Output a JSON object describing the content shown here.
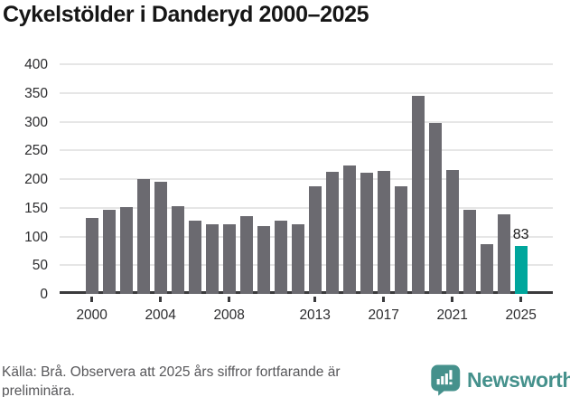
{
  "chart_data": {
    "type": "bar",
    "title": "Cykelstölder i Danderyd 2000–2025",
    "xlabel": "",
    "ylabel": "",
    "categories": [
      2000,
      2001,
      2002,
      2003,
      2004,
      2005,
      2006,
      2007,
      2008,
      2009,
      2010,
      2011,
      2012,
      2013,
      2014,
      2015,
      2016,
      2017,
      2018,
      2019,
      2020,
      2021,
      2022,
      2023,
      2024,
      2025
    ],
    "values": [
      132,
      146,
      151,
      200,
      196,
      153,
      127,
      121,
      121,
      136,
      118,
      128,
      121,
      187,
      212,
      223,
      211,
      214,
      187,
      345,
      297,
      215,
      146,
      87,
      139,
      83
    ],
    "ylim": [
      0,
      400
    ],
    "y_ticks": [
      0,
      50,
      100,
      150,
      200,
      250,
      300,
      350,
      400
    ],
    "x_ticks": [
      {
        "index": 0,
        "label": "2000"
      },
      {
        "index": 4,
        "label": "2004"
      },
      {
        "index": 8,
        "label": "2008"
      },
      {
        "index": 13,
        "label": "2013"
      },
      {
        "index": 17,
        "label": "2017"
      },
      {
        "index": 21,
        "label": "2021"
      },
      {
        "index": 25,
        "label": "2025"
      }
    ],
    "grid": "horizontal",
    "legend": "none",
    "bar_color": "#6b6a70",
    "highlight_color": "#00a69c",
    "highlight_index": 25,
    "gridline_color": "#e6e6e6",
    "axis_color": "#3a3a3c",
    "value_labels": [
      {
        "index": 25,
        "text": "83"
      }
    ]
  },
  "footer": {
    "source_text": "Källa: Brå. Observera att 2025 års siffror fortfarande är preliminära."
  },
  "logo": {
    "text": "Newsworthy",
    "color": "#45918c",
    "icon": "newsworthy-bar-chart-bubble-icon"
  }
}
